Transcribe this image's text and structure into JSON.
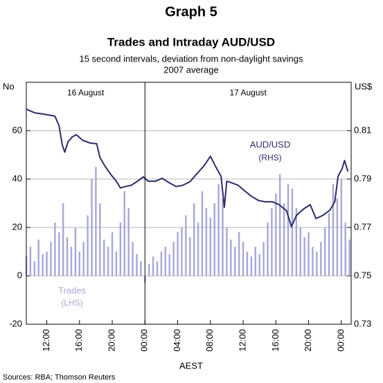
{
  "chart_data": {
    "type": "combo",
    "title": "Graph 5",
    "chart_title": "Trades and Intraday AUD/USD",
    "subtitle": [
      "15 second intervals, deviation from non-daylight savings",
      "2007 average"
    ],
    "y_label": "No",
    "y2_label": "US$",
    "x_label": "AEST",
    "source": "Sources: RBA; Thomson Reuters",
    "period_labels": [
      "16 August",
      "17 August"
    ],
    "period_divider": 24,
    "annotations": [
      "(LHS)",
      "(RHS)"
    ],
    "xlim": [
      9.5,
      49.2
    ],
    "xticks": [
      {
        "value": 12,
        "label": "12:00"
      },
      {
        "value": 16,
        "label": "16:00"
      },
      {
        "value": 20,
        "label": "20:00"
      },
      {
        "value": 24,
        "label": "00:00"
      },
      {
        "value": 28,
        "label": "04:00"
      },
      {
        "value": 32,
        "label": "08:00"
      },
      {
        "value": 36,
        "label": "12:00"
      },
      {
        "value": 40,
        "label": "16:00"
      },
      {
        "value": 44,
        "label": "20:00"
      },
      {
        "value": 48,
        "label": "00:00"
      }
    ],
    "ylim": [
      -20,
      80
    ],
    "yticks": [
      -20,
      0,
      20,
      40,
      60
    ],
    "y2lim": [
      0.73,
      0.83
    ],
    "y2ticks": [
      0.73,
      0.75,
      0.77,
      0.79,
      0.81
    ],
    "grid": true,
    "series": [
      {
        "name": "Trades",
        "type": "bar",
        "color": "#a7a7d8",
        "x": [
          9.5,
          10,
          10.5,
          11,
          11.5,
          12,
          12.5,
          13,
          13.5,
          14,
          14.5,
          15,
          15.5,
          16,
          16.5,
          17,
          17.5,
          18,
          18.5,
          19,
          19.5,
          20,
          20.5,
          21,
          21.5,
          22,
          22.5,
          23,
          23.5,
          24,
          24.5,
          25,
          25.5,
          26,
          26.5,
          27,
          27.5,
          28,
          28.5,
          29,
          29.5,
          30,
          30.5,
          31,
          31.5,
          32,
          32.5,
          33,
          33.5,
          34,
          34.5,
          35,
          35.5,
          36,
          36.5,
          37,
          37.5,
          38,
          38.5,
          39,
          39.5,
          40,
          40.5,
          41,
          41.5,
          42,
          42.5,
          43,
          43.5,
          44,
          44.5,
          45,
          45.5,
          46,
          46.5,
          47,
          47.5,
          48,
          48.5,
          49
        ],
        "values": [
          8,
          12,
          6,
          15,
          9,
          10,
          14,
          22,
          18,
          30,
          16,
          12,
          20,
          10,
          14,
          25,
          40,
          45,
          30,
          15,
          12,
          18,
          10,
          22,
          35,
          28,
          14,
          9,
          6,
          -3,
          5,
          8,
          6,
          10,
          12,
          9,
          14,
          18,
          20,
          25,
          16,
          30,
          22,
          35,
          28,
          24,
          30,
          38,
          32,
          20,
          15,
          12,
          18,
          14,
          10,
          8,
          12,
          9,
          14,
          22,
          28,
          34,
          42,
          30,
          38,
          36,
          28,
          20,
          16,
          18,
          12,
          10,
          14,
          20,
          26,
          38,
          32,
          40,
          22,
          15
        ]
      },
      {
        "name": "AUD/USD",
        "type": "line",
        "axis": "y2",
        "color": "#2b2b6b",
        "x": [
          9.5,
          10.5,
          11.5,
          12.5,
          13.0,
          13.5,
          13.9,
          14.2,
          14.6,
          15.1,
          15.6,
          16.4,
          17.3,
          18.1,
          18.5,
          19.1,
          19.8,
          20.5,
          21.0,
          21.6,
          22.3,
          23.1,
          23.8,
          24.4,
          25.3,
          26.1,
          26.9,
          27.8,
          28.6,
          29.5,
          30.3,
          31.2,
          32.0,
          32.6,
          33.3,
          33.7,
          34.0,
          34.5,
          35.4,
          36.2,
          37.0,
          37.9,
          38.7,
          39.6,
          40.4,
          41.3,
          41.9,
          42.5,
          43.4,
          44.2,
          44.9,
          45.7,
          46.6,
          47.2,
          47.6,
          48.1,
          48.4,
          48.8
        ],
        "values": [
          0.8189,
          0.8174,
          0.8169,
          0.8163,
          0.816,
          0.812,
          0.804,
          0.8011,
          0.8054,
          0.8074,
          0.8083,
          0.806,
          0.8049,
          0.8046,
          0.7989,
          0.7954,
          0.792,
          0.7891,
          0.7863,
          0.7869,
          0.7874,
          0.7891,
          0.7909,
          0.7891,
          0.7891,
          0.7903,
          0.7886,
          0.7869,
          0.7874,
          0.7889,
          0.792,
          0.7954,
          0.7994,
          0.7954,
          0.7911,
          0.7783,
          0.7891,
          0.7886,
          0.7874,
          0.7851,
          0.7829,
          0.7811,
          0.7806,
          0.7806,
          0.7794,
          0.7769,
          0.7703,
          0.7749,
          0.7777,
          0.7794,
          0.7737,
          0.7749,
          0.7771,
          0.7806,
          0.7911,
          0.7943,
          0.7977,
          0.7931
        ]
      }
    ]
  }
}
